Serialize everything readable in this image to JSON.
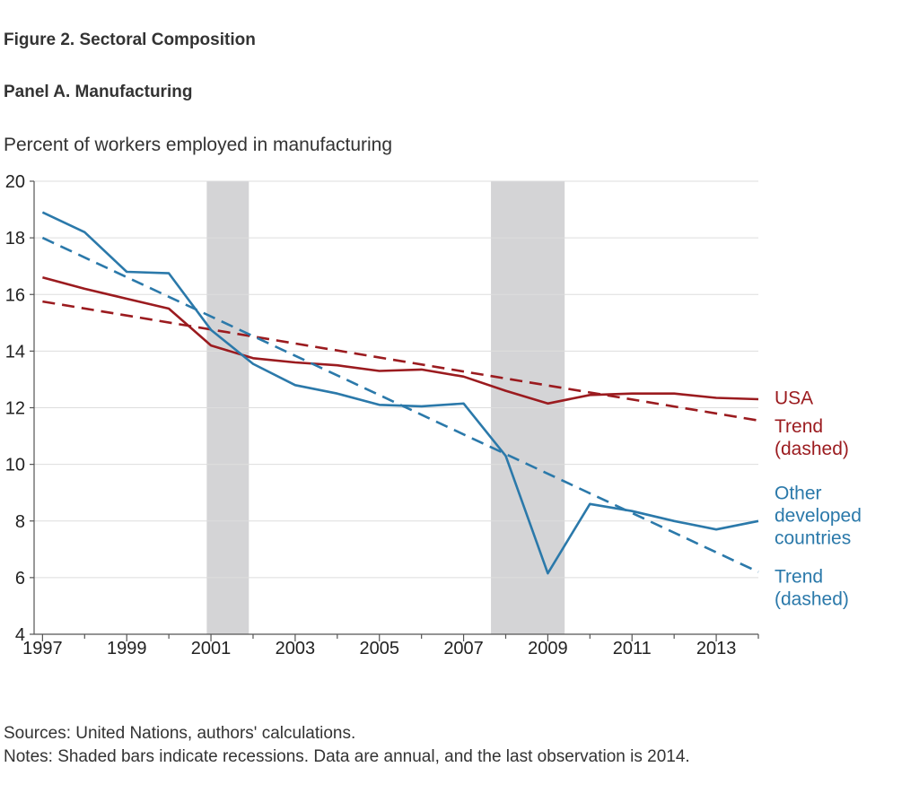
{
  "figure": {
    "title": "Figure 2. Sectoral Composition",
    "panel_title": "Panel A. Manufacturing",
    "sources": "Sources: United Nations, authors' calculations.",
    "notes": "Notes: Shaded bars indicate recessions. Data are annual, and the last observation is 2014."
  },
  "chart_data": {
    "type": "line",
    "title": "Panel A. Manufacturing",
    "ylabel": "Percent of workers employed in manufacturing",
    "xlabel": "",
    "xlim": [
      1996.8,
      2014
    ],
    "ylim": [
      4,
      20
    ],
    "yticks": [
      4,
      6,
      8,
      10,
      12,
      14,
      16,
      18,
      20
    ],
    "xticks": [
      1997,
      1999,
      2001,
      2003,
      2005,
      2007,
      2009,
      2011,
      2013
    ],
    "grid": "horizontal",
    "recessions": [
      [
        2000.9,
        2001.9
      ],
      [
        2007.65,
        2009.4
      ]
    ],
    "colors": {
      "usa": "#9b1b1f",
      "other": "#2b79aa",
      "recession": "#d4d4d6",
      "grid": "#dddddd",
      "axis": "#555555"
    },
    "series": [
      {
        "key": "usa",
        "name": "USA",
        "style": "solid",
        "color": "#9b1b1f",
        "x": [
          1997,
          1998,
          1999,
          2000,
          2001,
          2002,
          2003,
          2004,
          2005,
          2006,
          2007,
          2008,
          2009,
          2010,
          2011,
          2012,
          2013,
          2014
        ],
        "y": [
          16.6,
          16.2,
          15.85,
          15.5,
          14.2,
          13.75,
          13.6,
          13.5,
          13.3,
          13.35,
          13.1,
          12.6,
          12.15,
          12.45,
          12.5,
          12.5,
          12.35,
          12.3
        ]
      },
      {
        "key": "usa_trend",
        "name": "Trend\n(dashed)",
        "style": "dashed",
        "color": "#9b1b1f",
        "x": [
          1997,
          2014
        ],
        "y": [
          15.75,
          11.55
        ]
      },
      {
        "key": "other",
        "name": "Other\ndeveloped\ncountries",
        "style": "solid",
        "color": "#2b79aa",
        "x": [
          1997,
          1998,
          1999,
          2000,
          2001,
          2002,
          2003,
          2004,
          2005,
          2006,
          2007,
          2008,
          2009,
          2010,
          2011,
          2012,
          2013,
          2014
        ],
        "y": [
          18.9,
          18.2,
          16.8,
          16.75,
          14.75,
          13.55,
          12.8,
          12.5,
          12.1,
          12.05,
          12.15,
          10.3,
          6.15,
          8.6,
          8.35,
          8.0,
          7.7,
          8.0
        ]
      },
      {
        "key": "other_trend",
        "name": "Trend\n(dashed)",
        "style": "dashed",
        "color": "#2b79aa",
        "x": [
          1997,
          2014
        ],
        "y": [
          18.0,
          6.2
        ]
      }
    ],
    "annotations": [
      {
        "for": "usa",
        "lines": [
          "USA"
        ],
        "y": 12.35
      },
      {
        "for": "usa_trend",
        "lines": [
          "Trend",
          "(dashed)"
        ],
        "y": 10.95
      },
      {
        "for": "other",
        "lines": [
          "Other",
          "developed",
          "countries"
        ],
        "y": 8.2
      },
      {
        "for": "other_trend",
        "lines": [
          "Trend",
          "(dashed)"
        ],
        "y": 5.65
      }
    ]
  }
}
